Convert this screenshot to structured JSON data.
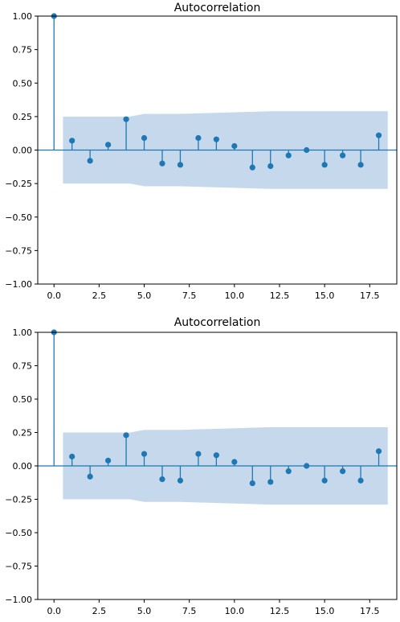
{
  "chart_data": [
    {
      "type": "stem",
      "title": "Autocorrelation",
      "xlim": [
        -0.9,
        19.0
      ],
      "ylim": [
        -1.0,
        1.0
      ],
      "xticks": [
        "0.0",
        "2.5",
        "5.0",
        "7.5",
        "10.0",
        "12.5",
        "15.0",
        "17.5"
      ],
      "xtick_values": [
        0,
        2.5,
        5,
        7.5,
        10,
        12.5,
        15,
        17.5
      ],
      "yticks": [
        "1.00",
        "0.75",
        "0.50",
        "0.25",
        "0.00",
        "−0.25",
        "−0.50",
        "−0.75",
        "−1.00"
      ],
      "ytick_values": [
        1.0,
        0.75,
        0.5,
        0.25,
        0.0,
        -0.25,
        -0.5,
        -0.75,
        -1.0
      ],
      "lags": [
        0,
        1,
        2,
        3,
        4,
        5,
        6,
        7,
        8,
        9,
        10,
        11,
        12,
        13,
        14,
        15,
        16,
        17,
        18
      ],
      "values": [
        1.0,
        0.07,
        -0.08,
        0.04,
        0.23,
        0.09,
        -0.1,
        -0.11,
        0.09,
        0.08,
        0.03,
        -0.13,
        -0.12,
        -0.04,
        0.0,
        -0.11,
        -0.04,
        -0.11,
        0.11
      ],
      "confidence_band": {
        "x": [
          0.5,
          4.2,
          5.0,
          7.0,
          12.0,
          18.5
        ],
        "upper": [
          0.25,
          0.25,
          0.27,
          0.27,
          0.29,
          0.29
        ],
        "lower": [
          -0.25,
          -0.25,
          -0.27,
          -0.27,
          -0.29,
          -0.29
        ]
      },
      "color": "#1f77b4",
      "band_color": "#c6d9ec"
    },
    {
      "type": "stem",
      "title": "Autocorrelation",
      "xlim": [
        -0.9,
        19.0
      ],
      "ylim": [
        -1.0,
        1.0
      ],
      "xticks": [
        "0.0",
        "2.5",
        "5.0",
        "7.5",
        "10.0",
        "12.5",
        "15.0",
        "17.5"
      ],
      "xtick_values": [
        0,
        2.5,
        5,
        7.5,
        10,
        12.5,
        15,
        17.5
      ],
      "yticks": [
        "1.00",
        "0.75",
        "0.50",
        "0.25",
        "0.00",
        "−0.25",
        "−0.50",
        "−0.75",
        "−1.00"
      ],
      "ytick_values": [
        1.0,
        0.75,
        0.5,
        0.25,
        0.0,
        -0.25,
        -0.5,
        -0.75,
        -1.0
      ],
      "lags": [
        0,
        1,
        2,
        3,
        4,
        5,
        6,
        7,
        8,
        9,
        10,
        11,
        12,
        13,
        14,
        15,
        16,
        17,
        18
      ],
      "values": [
        1.0,
        0.07,
        -0.08,
        0.04,
        0.23,
        0.09,
        -0.1,
        -0.11,
        0.09,
        0.08,
        0.03,
        -0.13,
        -0.12,
        -0.04,
        0.0,
        -0.11,
        -0.04,
        -0.11,
        0.11
      ],
      "confidence_band": {
        "x": [
          0.5,
          4.2,
          5.0,
          7.0,
          12.0,
          18.5
        ],
        "upper": [
          0.25,
          0.25,
          0.27,
          0.27,
          0.29,
          0.29
        ],
        "lower": [
          -0.25,
          -0.25,
          -0.27,
          -0.27,
          -0.29,
          -0.29
        ]
      },
      "color": "#1f77b4",
      "band_color": "#c6d9ec"
    }
  ]
}
